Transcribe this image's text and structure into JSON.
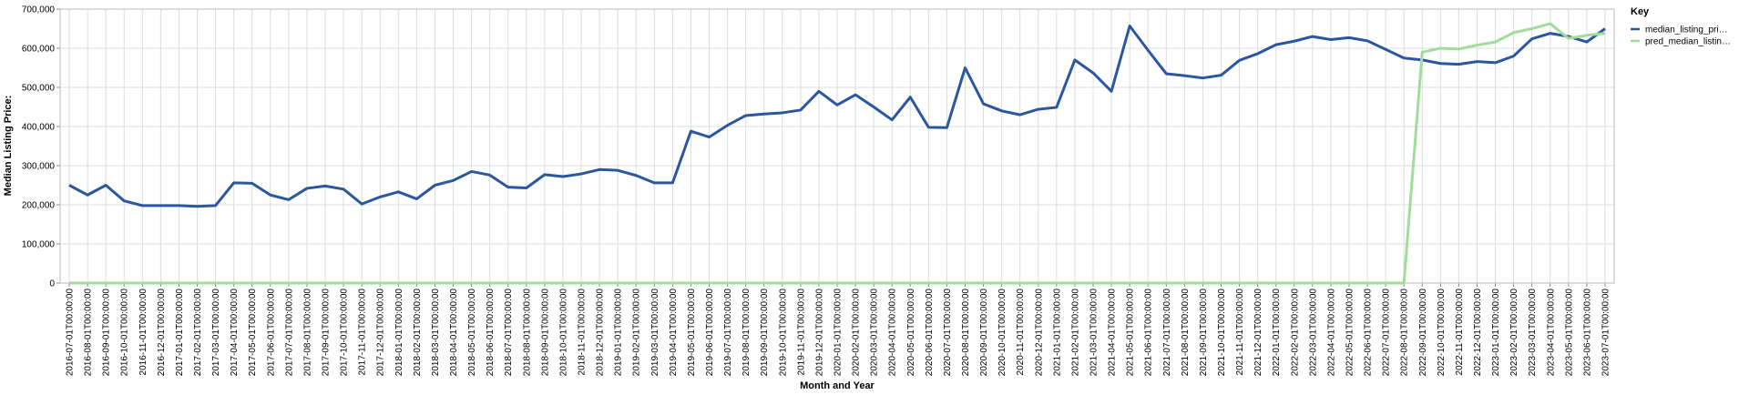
{
  "chart_data": {
    "type": "line",
    "x_label": "Month and Year",
    "y_label": "Median Listing Price:",
    "legend_title": "Key",
    "legend_position": "right",
    "grid": true,
    "categories": [
      "2016-07-01T00:00:00",
      "2016-08-01T00:00:00",
      "2016-09-01T00:00:00",
      "2016-10-01T00:00:00",
      "2016-11-01T00:00:00",
      "2016-12-01T00:00:00",
      "2017-01-01T00:00:00",
      "2017-02-01T00:00:00",
      "2017-03-01T00:00:00",
      "2017-04-01T00:00:00",
      "2017-05-01T00:00:00",
      "2017-06-01T00:00:00",
      "2017-07-01T00:00:00",
      "2017-08-01T00:00:00",
      "2017-09-01T00:00:00",
      "2017-10-01T00:00:00",
      "2017-11-01T00:00:00",
      "2017-12-01T00:00:00",
      "2018-01-01T00:00:00",
      "2018-02-01T00:00:00",
      "2018-03-01T00:00:00",
      "2018-04-01T00:00:00",
      "2018-05-01T00:00:00",
      "2018-06-01T00:00:00",
      "2018-07-01T00:00:00",
      "2018-08-01T00:00:00",
      "2018-09-01T00:00:00",
      "2018-10-01T00:00:00",
      "2018-11-01T00:00:00",
      "2018-12-01T00:00:00",
      "2019-01-01T00:00:00",
      "2019-02-01T00:00:00",
      "2019-03-01T00:00:00",
      "2019-04-01T00:00:00",
      "2019-05-01T00:00:00",
      "2019-06-01T00:00:00",
      "2019-07-01T00:00:00",
      "2019-08-01T00:00:00",
      "2019-09-01T00:00:00",
      "2019-10-01T00:00:00",
      "2019-11-01T00:00:00",
      "2019-12-01T00:00:00",
      "2020-01-01T00:00:00",
      "2020-02-01T00:00:00",
      "2020-03-01T00:00:00",
      "2020-04-01T00:00:00",
      "2020-05-01T00:00:00",
      "2020-06-01T00:00:00",
      "2020-07-01T00:00:00",
      "2020-08-01T00:00:00",
      "2020-09-01T00:00:00",
      "2020-10-01T00:00:00",
      "2020-11-01T00:00:00",
      "2020-12-01T00:00:00",
      "2021-01-01T00:00:00",
      "2021-02-01T00:00:00",
      "2021-03-01T00:00:00",
      "2021-04-01T00:00:00",
      "2021-05-01T00:00:00",
      "2021-06-01T00:00:00",
      "2021-07-01T00:00:00",
      "2021-08-01T00:00:00",
      "2021-09-01T00:00:00",
      "2021-10-01T00:00:00",
      "2021-11-01T00:00:00",
      "2021-12-01T00:00:00",
      "2022-01-01T00:00:00",
      "2022-02-01T00:00:00",
      "2022-03-01T00:00:00",
      "2022-04-01T00:00:00",
      "2022-05-01T00:00:00",
      "2022-06-01T00:00:00",
      "2022-07-01T00:00:00",
      "2022-08-01T00:00:00",
      "2022-09-01T00:00:00",
      "2022-10-01T00:00:00",
      "2022-11-01T00:00:00",
      "2022-12-01T00:00:00",
      "2023-01-01T00:00:00",
      "2023-02-01T00:00:00",
      "2023-03-01T00:00:00",
      "2023-04-01T00:00:00",
      "2023-05-01T00:00:00",
      "2023-06-01T00:00:00",
      "2023-07-01T00:00:00"
    ],
    "series": [
      {
        "name": "median_listing_pri…",
        "color": "#2b56a0",
        "values": [
          250000,
          225000,
          250000,
          210000,
          198000,
          198000,
          198000,
          196000,
          198000,
          256000,
          255000,
          225000,
          213000,
          242000,
          248000,
          240000,
          202000,
          220000,
          233000,
          215000,
          250000,
          262000,
          285000,
          276000,
          245000,
          243000,
          277000,
          272000,
          279000,
          290000,
          288000,
          275000,
          256000,
          256000,
          388000,
          373000,
          403000,
          428000,
          432000,
          435000,
          442000,
          490000,
          455000,
          481000,
          450000,
          417000,
          475000,
          398000,
          397000,
          550000,
          458000,
          440000,
          430000,
          444000,
          449000,
          570000,
          537000,
          490000,
          657000,
          595000,
          535000,
          530000,
          524000,
          531000,
          569000,
          586000,
          609000,
          618000,
          630000,
          622000,
          627000,
          619000,
          597000,
          575000,
          570000,
          561000,
          559000,
          566000,
          563000,
          580000,
          624000,
          638000,
          630000,
          616000,
          650000
        ]
      },
      {
        "name": "pred_median_listin…",
        "color": "#a2dc9c",
        "values": [
          0,
          0,
          0,
          0,
          0,
          0,
          0,
          0,
          0,
          0,
          0,
          0,
          0,
          0,
          0,
          0,
          0,
          0,
          0,
          0,
          0,
          0,
          0,
          0,
          0,
          0,
          0,
          0,
          0,
          0,
          0,
          0,
          0,
          0,
          0,
          0,
          0,
          0,
          0,
          0,
          0,
          0,
          0,
          0,
          0,
          0,
          0,
          0,
          0,
          0,
          0,
          0,
          0,
          0,
          0,
          0,
          0,
          0,
          0,
          0,
          0,
          0,
          0,
          0,
          0,
          0,
          0,
          0,
          0,
          0,
          0,
          0,
          0,
          0,
          590000,
          600000,
          598000,
          608000,
          616000,
          640000,
          650000,
          663000,
          625000,
          633000,
          638000
        ]
      }
    ],
    "ylim": [
      0,
      700000
    ],
    "yticks": [
      0,
      {
        "value": 100000,
        "label": "100,000"
      },
      {
        "value": 200000,
        "label": "200,000"
      },
      {
        "value": 300000,
        "label": "300,000"
      },
      {
        "value": 400000,
        "label": "400,000"
      },
      {
        "value": 500000,
        "label": "500,000"
      },
      {
        "value": 600000,
        "label": "600,000"
      },
      {
        "value": 700000,
        "label": "700,000"
      }
    ]
  }
}
